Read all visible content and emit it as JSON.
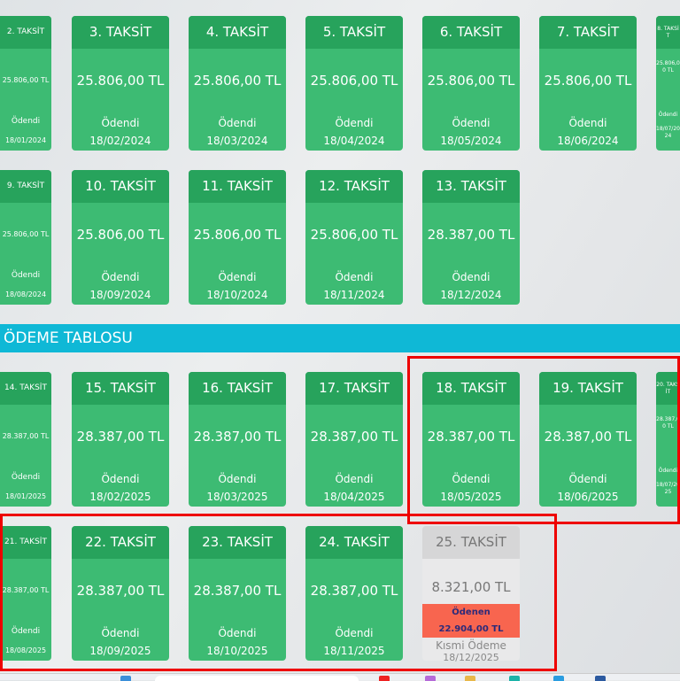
{
  "section_title": "ÖDEME TABLOSU",
  "colors": {
    "card_paid": "#3dbb73",
    "card_header": "#27a35c",
    "section_bar": "#0fb8d6",
    "partial_paid": "#f8654f",
    "highlight": "#e00000"
  },
  "rows": [
    [
      {
        "title": "2. TAKSİT",
        "amount": "25.806,00 TL",
        "status": "Ödendi",
        "date": "18/01/2024"
      },
      {
        "title": "3. TAKSİT",
        "amount": "25.806,00 TL",
        "status": "Ödendi",
        "date": "18/02/2024"
      },
      {
        "title": "4. TAKSİT",
        "amount": "25.806,00 TL",
        "status": "Ödendi",
        "date": "18/03/2024"
      },
      {
        "title": "5. TAKSİT",
        "amount": "25.806,00 TL",
        "status": "Ödendi",
        "date": "18/04/2024"
      },
      {
        "title": "6. TAKSİT",
        "amount": "25.806,00 TL",
        "status": "Ödendi",
        "date": "18/05/2024"
      },
      {
        "title": "7. TAKSİT",
        "amount": "25.806,00 TL",
        "status": "Ödendi",
        "date": "18/06/2024"
      },
      {
        "title": "8. TAKSİT",
        "amount": "25.806,00 TL",
        "status": "Ödendi",
        "date": "18/07/2024"
      }
    ],
    [
      {
        "title": "9. TAKSİT",
        "amount": "25.806,00 TL",
        "status": "Ödendi",
        "date": "18/08/2024"
      },
      {
        "title": "10. TAKSİT",
        "amount": "25.806,00 TL",
        "status": "Ödendi",
        "date": "18/09/2024"
      },
      {
        "title": "11. TAKSİT",
        "amount": "25.806,00 TL",
        "status": "Ödendi",
        "date": "18/10/2024"
      },
      {
        "title": "12. TAKSİT",
        "amount": "25.806,00 TL",
        "status": "Ödendi",
        "date": "18/11/2024"
      },
      {
        "title": "13. TAKSİT",
        "amount": "28.387,00 TL",
        "status": "Ödendi",
        "date": "18/12/2024"
      }
    ],
    [
      {
        "title": "14. TAKSİT",
        "amount": "28.387,00 TL",
        "status": "Ödendi",
        "date": "18/01/2025"
      },
      {
        "title": "15. TAKSİT",
        "amount": "28.387,00 TL",
        "status": "Ödendi",
        "date": "18/02/2025"
      },
      {
        "title": "16. TAKSİT",
        "amount": "28.387,00 TL",
        "status": "Ödendi",
        "date": "18/03/2025"
      },
      {
        "title": "17. TAKSİT",
        "amount": "28.387,00 TL",
        "status": "Ödendi",
        "date": "18/04/2025"
      },
      {
        "title": "18. TAKSİT",
        "amount": "28.387,00 TL",
        "status": "Ödendi",
        "date": "18/05/2025"
      },
      {
        "title": "19. TAKSİT",
        "amount": "28.387,00 TL",
        "status": "Ödendi",
        "date": "18/06/2025"
      },
      {
        "title": "20. TAKSİT",
        "amount": "28.387,00 TL",
        "status": "Ödendi",
        "date": "18/07/2025"
      }
    ],
    [
      {
        "title": "21. TAKSİT",
        "amount": "28.387,00 TL",
        "status": "Ödendi",
        "date": "18/08/2025"
      },
      {
        "title": "22. TAKSİT",
        "amount": "28.387,00 TL",
        "status": "Ödendi",
        "date": "18/09/2025"
      },
      {
        "title": "23. TAKSİT",
        "amount": "28.387,00 TL",
        "status": "Ödendi",
        "date": "18/10/2025"
      },
      {
        "title": "24. TAKSİT",
        "amount": "28.387,00 TL",
        "status": "Ödendi",
        "date": "18/11/2025"
      },
      {
        "title": "25. TAKSİT",
        "amount": "8.321,00 TL",
        "partial": true,
        "paid_label": "Ödenen",
        "paid_amount": "22.904,00 TL",
        "status": "Kısmi Ödeme",
        "date": "18/12/2025"
      }
    ]
  ]
}
